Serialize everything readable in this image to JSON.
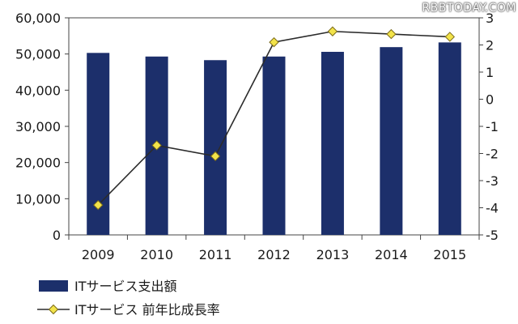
{
  "watermark": "RBBTODAY.COM",
  "colors": {
    "bar": "#1c2f6b",
    "line": "#2b2b2b",
    "marker_fill": "#f2e34a",
    "marker_stroke": "#7a6a1a"
  },
  "chart_data": {
    "type": "bar+line",
    "categories": [
      "2009",
      "2010",
      "2011",
      "2012",
      "2013",
      "2014",
      "2015"
    ],
    "series": [
      {
        "name": "ITサービス支出額",
        "type": "bar",
        "axis": "left",
        "values": [
          50300,
          49300,
          48300,
          49300,
          50600,
          51900,
          53200
        ]
      },
      {
        "name": "ITサービス 前年比成長率",
        "type": "line",
        "axis": "right",
        "values": [
          -3.9,
          -1.7,
          -2.1,
          2.1,
          2.5,
          2.4,
          2.3
        ]
      }
    ],
    "y_left": {
      "ylim": [
        0,
        60000
      ],
      "ticks": [
        "0",
        "10,000",
        "20,000",
        "30,000",
        "40,000",
        "50,000",
        "60,000"
      ]
    },
    "y_right": {
      "ylim": [
        -5,
        3
      ],
      "ticks": [
        "-5",
        "-4",
        "-3",
        "-2",
        "-1",
        "0",
        "1",
        "2",
        "3"
      ]
    },
    "legend": {
      "placement": "bottom-left",
      "items": [
        {
          "label": "ITサービス支出額",
          "kind": "bar"
        },
        {
          "label": "ITサービス 前年比成長率",
          "kind": "line-marker"
        }
      ]
    },
    "grid": false
  }
}
